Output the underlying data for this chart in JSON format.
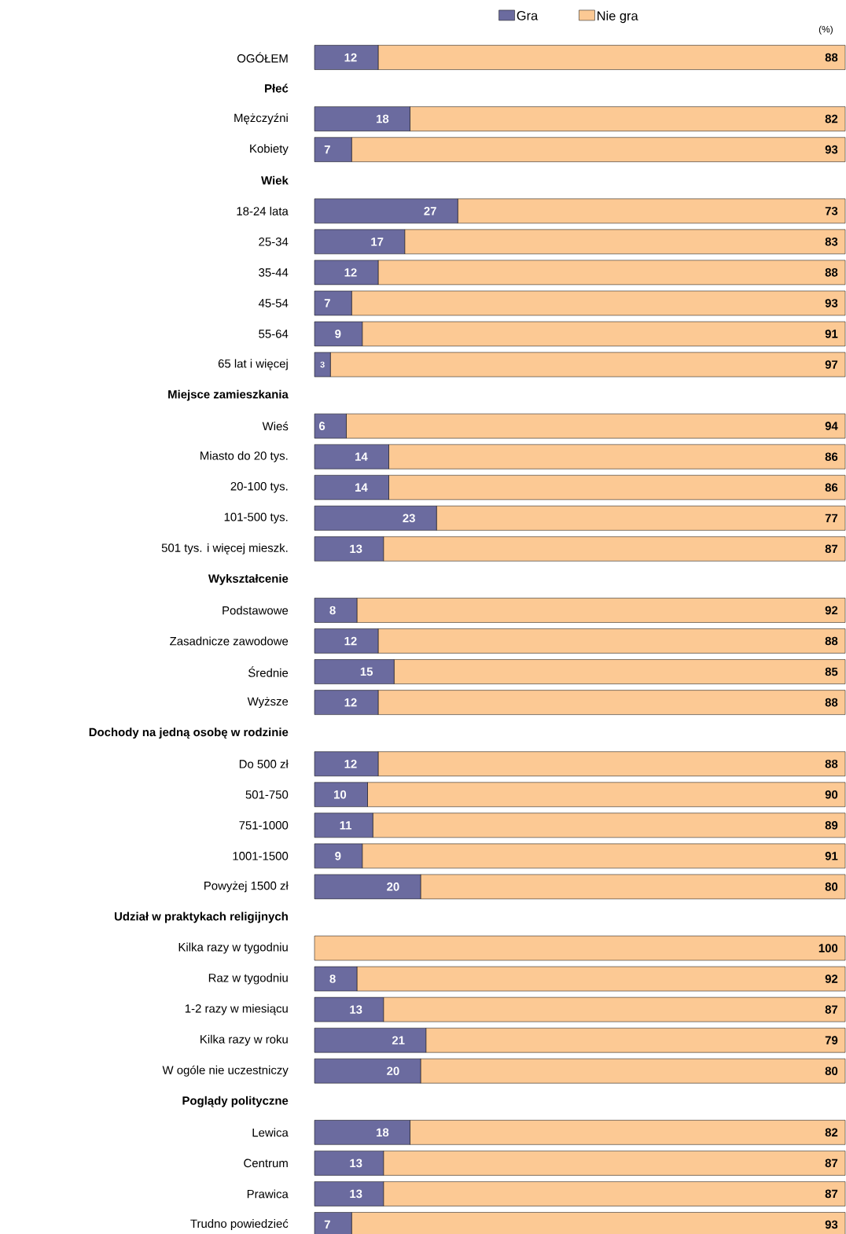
{
  "chart_data": {
    "type": "bar",
    "orientation": "horizontal",
    "stacked": true,
    "legend": "top",
    "tick_labels": "y",
    "xlim": [
      0,
      100
    ],
    "annotations": [
      "(%)"
    ],
    "categories": [
      "OGÓŁEM",
      "Płeć",
      "Mężczyźni",
      "Kobiety",
      "Wiek",
      "18-24 lata",
      "25-34",
      "35-44",
      "45-54",
      "55-64",
      "65 lat i więcej",
      "Miejsce zamieszkania",
      "Wieś",
      "Miasto do 20 tys.",
      "20-100 tys.",
      "101-500 tys.",
      "501 tys. i więcej mieszk.",
      "Wykształcenie",
      "Podstawowe",
      "Zasadnicze zawodowe",
      "Średnie",
      "Wyższe",
      "Dochody na jedną osobę w rodzinie",
      "Do 500 zł",
      "501-750",
      "751-1000",
      "1001-1500",
      "Powyżej 1500 zł",
      "Udział w praktykach religijnych",
      "Kilka razy w tygodniu",
      "Raz w tygodniu",
      "1-2 razy w miesiącu",
      "Kilka razy w roku",
      "W ogóle nie uczestniczy",
      "Poglądy polityczne",
      "Lewica",
      "Centrum",
      "Prawica",
      "Trudno powiedzieć"
    ],
    "series": [
      {
        "name": "Gra",
        "color": "#6b6b9f",
        "values": [
          12,
          null,
          18,
          7,
          null,
          27,
          17,
          12,
          7,
          9,
          3,
          null,
          6,
          14,
          14,
          23,
          13,
          null,
          8,
          12,
          15,
          12,
          null,
          12,
          10,
          11,
          9,
          20,
          null,
          0,
          8,
          13,
          21,
          20,
          null,
          18,
          13,
          13,
          7
        ],
        "value_labels": [
          "12",
          null,
          "18",
          "7",
          null,
          "27",
          "17",
          "12",
          "7",
          "9",
          "3",
          null,
          "6",
          "14",
          "14",
          "23",
          "13",
          null,
          "8",
          "12",
          "15",
          "12",
          null,
          "12",
          "10",
          "11",
          "9",
          "20",
          null,
          null,
          "8",
          "13",
          "21",
          "20",
          null,
          "18",
          "13",
          "13",
          "7"
        ]
      },
      {
        "name": "Nie gra",
        "color": "#fcc994",
        "values": [
          88,
          null,
          82,
          93,
          null,
          73,
          83,
          88,
          93,
          91,
          97,
          null,
          94,
          86,
          86,
          77,
          87,
          null,
          92,
          88,
          85,
          88,
          null,
          88,
          90,
          89,
          91,
          80,
          null,
          100,
          92,
          87,
          79,
          80,
          null,
          82,
          87,
          87,
          93
        ],
        "value_labels": [
          "88",
          null,
          "82",
          "93",
          null,
          "73",
          "83",
          "88",
          "93",
          "91",
          "97",
          null,
          "94",
          "86",
          "86",
          "77",
          "87",
          null,
          "92",
          "88",
          "85",
          "88",
          null,
          "88",
          "90",
          "89",
          "91",
          "80",
          null,
          "100",
          "92",
          "87",
          "79",
          "80",
          null,
          "82",
          "87",
          "87",
          "93"
        ]
      }
    ]
  }
}
